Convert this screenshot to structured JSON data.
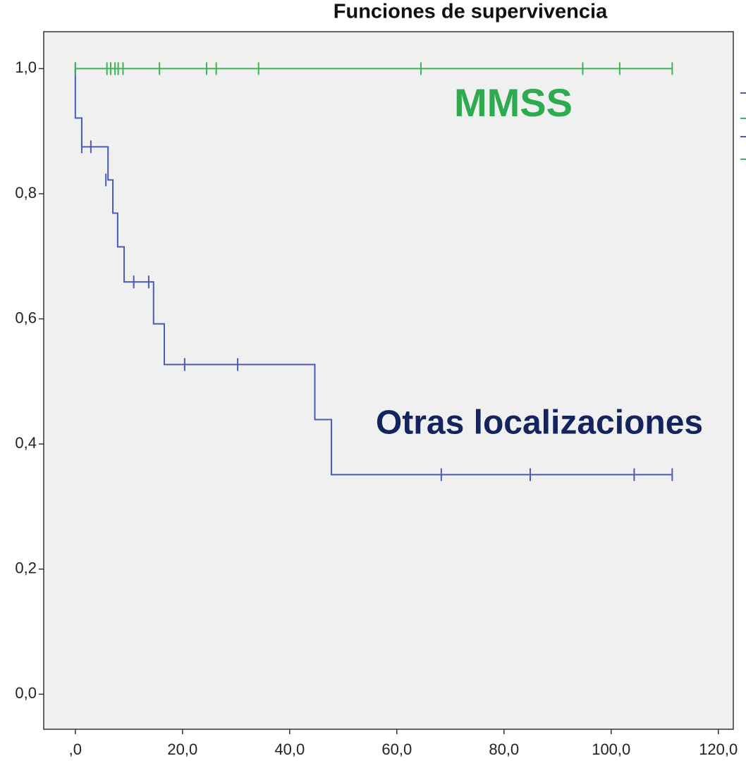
{
  "chart_data": {
    "type": "step",
    "title": "Funciones de supervivencia",
    "annotations": [
      "MMSS",
      "Otras localizaciones"
    ],
    "xlim": [
      -5.9,
      122.8
    ],
    "ylim": [
      -0.056,
      1.059
    ],
    "xticks": [
      {
        "value": 0,
        "label": ",0"
      },
      {
        "value": 20,
        "label": "20,0"
      },
      {
        "value": 40,
        "label": "40,0"
      },
      {
        "value": 60,
        "label": "60,0"
      },
      {
        "value": 80,
        "label": "80,0"
      },
      {
        "value": 100,
        "label": "100,0"
      },
      {
        "value": 120,
        "label": "120,0"
      }
    ],
    "yticks": [
      {
        "value": 0,
        "label": "0,0"
      },
      {
        "value": 0.2,
        "label": "0,2"
      },
      {
        "value": 0.4,
        "label": "0,4"
      },
      {
        "value": 0.6,
        "label": "0,6"
      },
      {
        "value": 0.8,
        "label": "0,8"
      },
      {
        "value": 1,
        "label": "1,0"
      }
    ],
    "series": [
      {
        "color": "#4a5bb8",
        "x": [
          0,
          0,
          1.2,
          1.2,
          6.1,
          6.1,
          7.0,
          7.0,
          7.9,
          7.9,
          9.1,
          9.1,
          14.6,
          14.6,
          16.6,
          16.6,
          44.7,
          44.7,
          47.8,
          47.8,
          111.4
        ],
        "values": [
          1,
          0.921,
          0.921,
          0.875,
          0.875,
          0.822,
          0.822,
          0.769,
          0.769,
          0.715,
          0.715,
          0.659,
          0.659,
          0.592,
          0.592,
          0.527,
          0.527,
          0.439,
          0.439,
          0.351,
          0.351
        ],
        "censor_x": [
          0,
          1.2,
          2.9,
          5.7,
          10.9,
          13.7,
          20.4,
          30.3,
          68.3,
          84.9,
          104.3,
          111.4
        ],
        "censor_values": [
          1,
          0.875,
          0.875,
          0.822,
          0.659,
          0.659,
          0.527,
          0.527,
          0.351,
          0.351,
          0.351,
          0.351
        ]
      },
      {
        "color": "#3cb457",
        "x": [
          0,
          111.4
        ],
        "values": [
          1,
          1
        ],
        "censor_x": [
          0,
          5.9,
          6.6,
          7.4,
          8.0,
          8.9,
          15.7,
          24.5,
          26.3,
          34.2,
          64.5,
          94.7,
          101.6,
          111.4
        ],
        "censor_values": [
          1,
          1,
          1,
          1,
          1,
          1,
          1,
          1,
          1,
          1,
          1,
          1,
          1,
          1
        ]
      }
    ]
  }
}
